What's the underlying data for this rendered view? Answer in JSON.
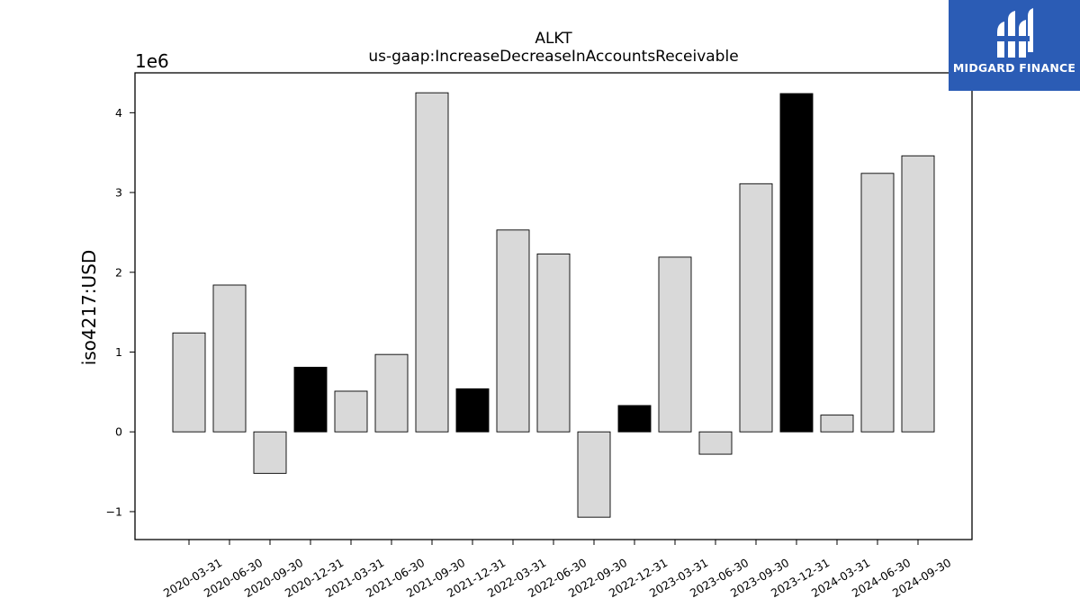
{
  "chart_data": {
    "type": "bar",
    "title": "ALKT",
    "subtitle": "us-gaap:IncreaseDecreaseInAccountsReceivable",
    "ylabel": "iso4217:USD",
    "xlabel": "",
    "y_multiplier_label": "1e6",
    "ylim": [
      -1.35,
      4.5
    ],
    "yticks": [
      -1,
      0,
      1,
      2,
      3,
      4
    ],
    "ytick_labels": [
      "−1",
      "0",
      "1",
      "2",
      "3",
      "4"
    ],
    "grid": false,
    "legend": "none",
    "categories": [
      "2020-03-31",
      "2020-06-30",
      "2020-09-30",
      "2020-12-31",
      "2021-03-31",
      "2021-06-30",
      "2021-09-30",
      "2021-12-31",
      "2022-03-31",
      "2022-06-30",
      "2022-09-30",
      "2022-12-31",
      "2023-03-31",
      "2023-06-30",
      "2023-09-30",
      "2023-12-31",
      "2024-03-31",
      "2024-06-30",
      "2024-09-30"
    ],
    "values": [
      1.24,
      1.84,
      -0.52,
      0.81,
      0.51,
      0.97,
      4.25,
      0.54,
      2.53,
      2.23,
      -1.07,
      0.33,
      2.19,
      -0.28,
      3.11,
      4.24,
      0.21,
      3.24,
      3.46
    ],
    "highlight": [
      false,
      false,
      false,
      true,
      false,
      false,
      false,
      true,
      false,
      false,
      false,
      true,
      false,
      false,
      false,
      true,
      false,
      false,
      false
    ],
    "colors": {
      "bar": "#d9d9d9",
      "highlight_bar": "#000000",
      "edge": "#000000"
    }
  },
  "logo": {
    "text": "MIDGARD FINANCE",
    "icon": "midgard-logo-icon",
    "background": "#2b5cb5"
  }
}
